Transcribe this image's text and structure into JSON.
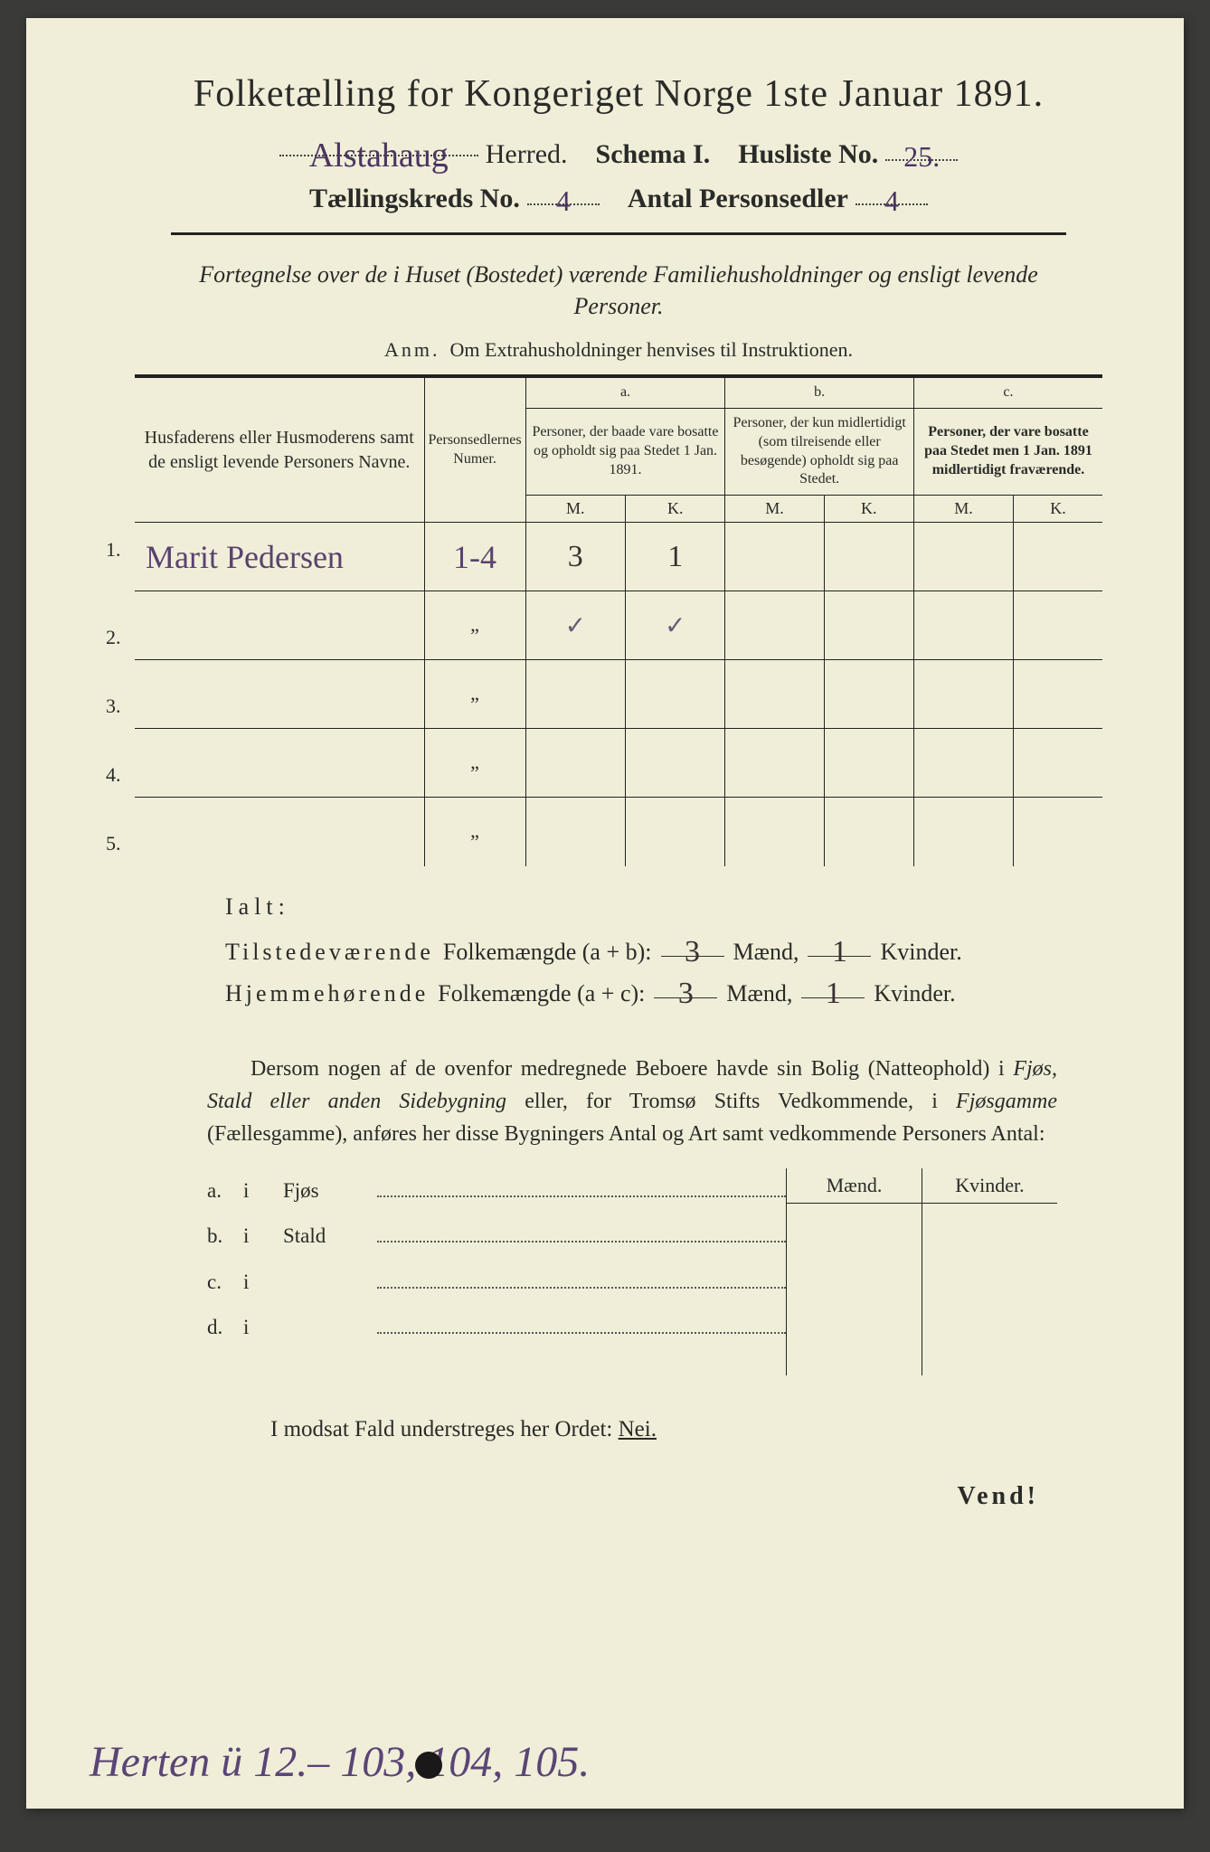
{
  "header": {
    "title": "Folketælling for Kongeriget Norge 1ste Januar 1891.",
    "herred_hw": "Alstahaug",
    "herred_label": "Herred.",
    "schema_label": "Schema I.",
    "husliste_label": "Husliste No.",
    "husliste_hw": "25.",
    "kreds_label": "Tællingskreds No.",
    "kreds_hw": "4",
    "antal_label": "Antal Personsedler",
    "antal_hw": "4"
  },
  "subtitle": "Fortegnelse over de i Huset (Bostedet) værende Familiehusholdninger og ensligt levende Personer.",
  "anm_prefix": "Anm.",
  "anm_text": "Om Extrahusholdninger henvises til Instruktionen.",
  "table": {
    "col1": "Husfaderens eller Husmoderens samt de ensligt levende Personers Navne.",
    "col2": "Personsedlernes Numer.",
    "a_label": "a.",
    "a_text": "Personer, der baade vare bosatte og opholdt sig paa Stedet 1 Jan. 1891.",
    "b_label": "b.",
    "b_text": "Personer, der kun midlertidigt (som tilreisende eller besøgende) opholdt sig paa Stedet.",
    "c_label": "c.",
    "c_text": "Personer, der vare bosatte paa Stedet men 1 Jan. 1891 midlertidigt fraværende.",
    "m": "M.",
    "k": "K.",
    "rows": [
      {
        "num": "1.",
        "name": "Marit Pedersen",
        "sedler": "1-4",
        "am": "3",
        "ak": "1",
        "bm": "",
        "bk": "",
        "cm": "",
        "ck": ""
      },
      {
        "num": "2.",
        "name": "",
        "sedler": "\"",
        "am": "✓",
        "ak": "✓",
        "bm": "",
        "bk": "",
        "cm": "",
        "ck": ""
      },
      {
        "num": "3.",
        "name": "",
        "sedler": "\"",
        "am": "",
        "ak": "",
        "bm": "",
        "bk": "",
        "cm": "",
        "ck": ""
      },
      {
        "num": "4.",
        "name": "",
        "sedler": "\"",
        "am": "",
        "ak": "",
        "bm": "",
        "bk": "",
        "cm": "",
        "ck": ""
      },
      {
        "num": "5.",
        "name": "",
        "sedler": "\"",
        "am": "",
        "ak": "",
        "bm": "",
        "bk": "",
        "cm": "",
        "ck": ""
      }
    ]
  },
  "ialt": {
    "label": "Ialt:",
    "row1_a": "Tilstedeværende",
    "row1_b": "Folkemængde (a + b):",
    "row2_a": "Hjemmehørende",
    "row2_b": "Folkemængde (a + c):",
    "maend": "Mænd,",
    "kvinder": "Kvinder.",
    "r1m": "3",
    "r1k": "1",
    "r2m": "3",
    "r2k": "1"
  },
  "para": {
    "t1": "Dersom nogen af de ovenfor medregnede Beboere havde sin Bolig (Natteophold) i ",
    "it1": "Fjøs, Stald eller anden Sidebygning",
    "t2": " eller, for Tromsø Stifts Vedkommende, i ",
    "it2": "Fjøsgamme",
    "t3": " (Fællesgamme), anføres her disse Bygningers Antal og Art samt vedkommende Personers Antal:"
  },
  "btable": {
    "maend": "Mænd.",
    "kvinder": "Kvinder.",
    "rows": [
      {
        "l": "a.",
        "i": "i",
        "w": "Fjøs"
      },
      {
        "l": "b.",
        "i": "i",
        "w": "Stald"
      },
      {
        "l": "c.",
        "i": "i",
        "w": ""
      },
      {
        "l": "d.",
        "i": "i",
        "w": ""
      }
    ]
  },
  "modsat": {
    "t1": "I modsat Fald understreges her Ordet: ",
    "nei": "Nei."
  },
  "vend": "Vend!",
  "bottom_hw": "Herten ü    12.– 103, 104, 105."
}
